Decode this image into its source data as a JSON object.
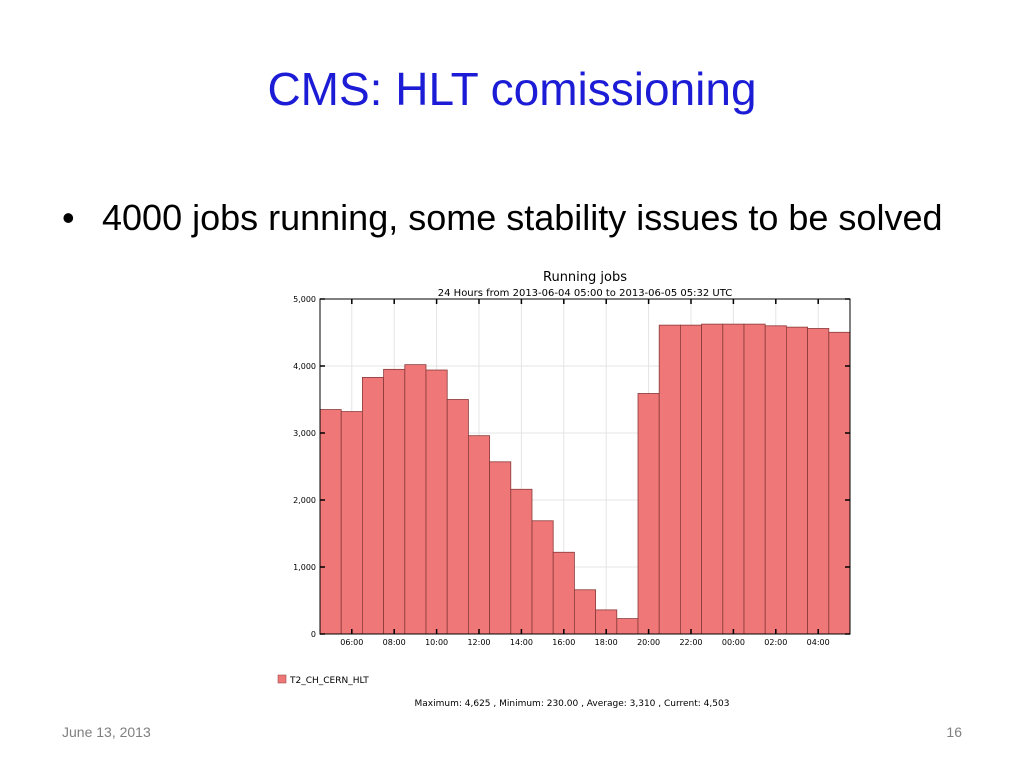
{
  "slide": {
    "title": "CMS: HLT comissioning",
    "bullet": "4000 jobs running, some stability issues to be solved",
    "footer_date": "June 13, 2013",
    "page_number": "16"
  },
  "chart_data": {
    "type": "bar",
    "title": "Running jobs",
    "subtitle": "24 Hours from 2013-06-04 05:00 to 2013-06-05 05:32 UTC",
    "categories": [
      "05:00",
      "06:00",
      "07:00",
      "08:00",
      "09:00",
      "10:00",
      "11:00",
      "12:00",
      "13:00",
      "14:00",
      "15:00",
      "16:00",
      "17:00",
      "18:00",
      "19:00",
      "20:00",
      "21:00",
      "22:00",
      "23:00",
      "00:00",
      "01:00",
      "02:00",
      "03:00",
      "04:00",
      "05:00"
    ],
    "x_tick_labels": [
      "06:00",
      "08:00",
      "10:00",
      "12:00",
      "14:00",
      "16:00",
      "18:00",
      "20:00",
      "22:00",
      "00:00",
      "02:00",
      "04:00"
    ],
    "series": [
      {
        "name": "T2_CH_CERN_HLT",
        "color": "#ef7777",
        "values": [
          3350,
          3320,
          3830,
          3950,
          4020,
          3940,
          3500,
          2960,
          2570,
          2160,
          1690,
          1220,
          660,
          360,
          230,
          3590,
          4610,
          4610,
          4625,
          4625,
          4625,
          4600,
          4580,
          4560,
          4503
        ]
      }
    ],
    "ylim": [
      0,
      5000
    ],
    "y_tick_labels": [
      "0",
      "1,000",
      "2,000",
      "3,000",
      "4,000",
      "5,000"
    ],
    "y_tick_values": [
      0,
      1000,
      2000,
      3000,
      4000,
      5000
    ],
    "grid": true,
    "legend_position": "bottom-left",
    "stats": "Maximum: 4,625 , Minimum: 230.00 , Average: 3,310 , Current: 4,503",
    "bar_edge_color": "#8b3a3a"
  }
}
